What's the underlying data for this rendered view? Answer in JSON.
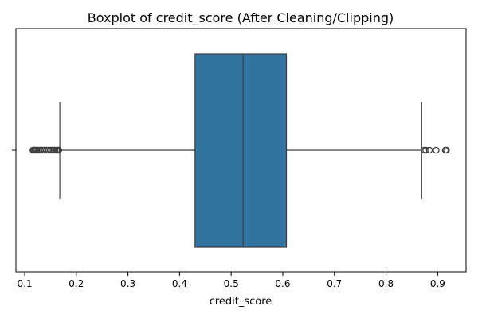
{
  "chart_data": {
    "type": "boxplot",
    "title": "Boxplot of credit_score (After Cleaning/Clipping)",
    "xlabel": "credit_score",
    "ylabel": "",
    "xlim": [
      0.083,
      0.955
    ],
    "x_ticks": [
      0.1,
      0.2,
      0.3,
      0.4,
      0.5,
      0.6,
      0.7,
      0.8,
      0.9
    ],
    "x_tick_labels": [
      "0.1",
      "0.2",
      "0.3",
      "0.4",
      "0.5",
      "0.6",
      "0.7",
      "0.8",
      "0.9"
    ],
    "grid": false,
    "orientation": "horizontal",
    "box": {
      "whisker_low": 0.168,
      "q1": 0.43,
      "median": 0.523,
      "q3": 0.607,
      "whisker_high": 0.869,
      "fill_color": "#3274a1",
      "line_color": "#3d3d3d"
    },
    "outliers": [
      0.116,
      0.118,
      0.12,
      0.122,
      0.124,
      0.127,
      0.13,
      0.134,
      0.138,
      0.142,
      0.146,
      0.15,
      0.153,
      0.156,
      0.159,
      0.162,
      0.164,
      0.166,
      0.874,
      0.877,
      0.884,
      0.897,
      0.915,
      0.917
    ]
  }
}
